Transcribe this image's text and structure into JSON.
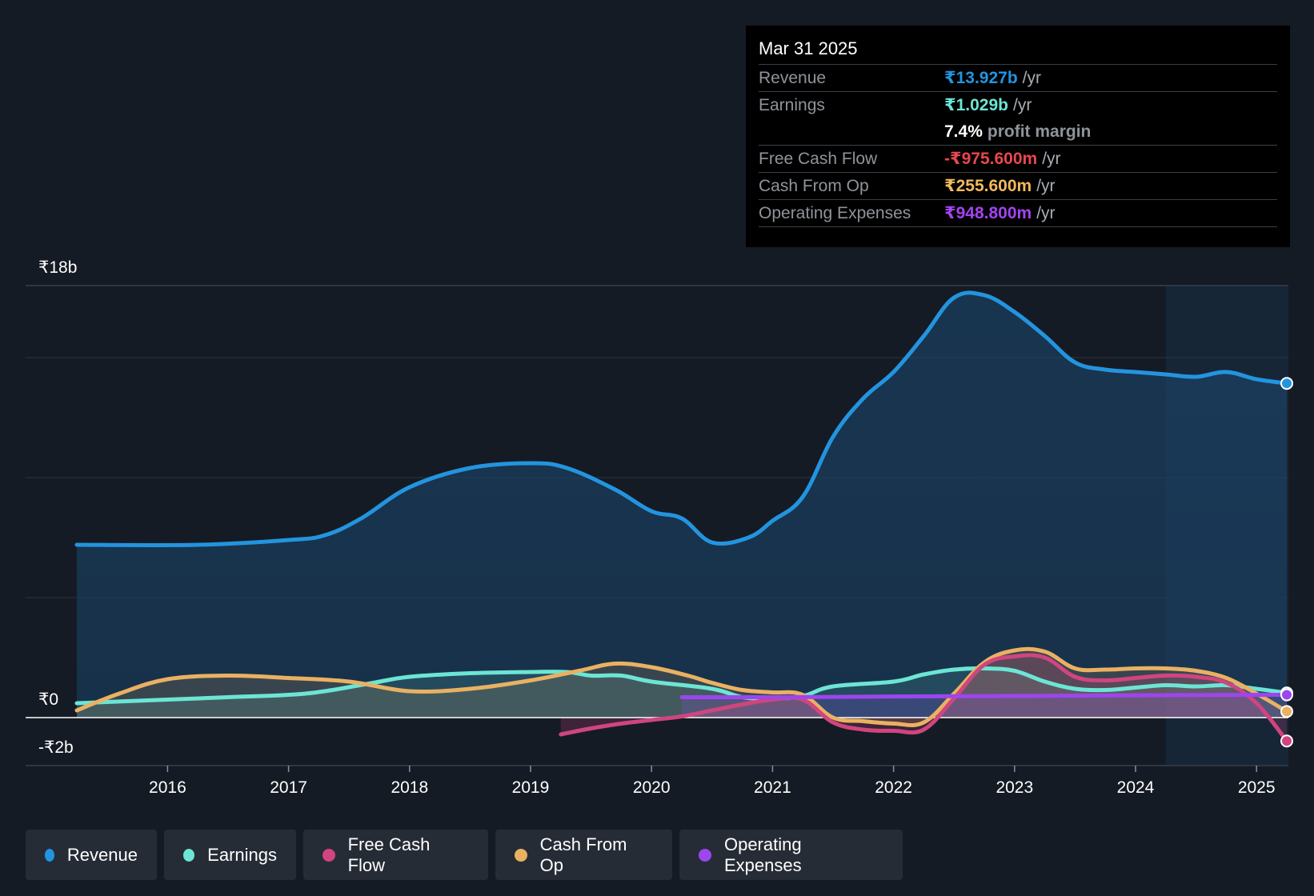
{
  "tooltip": {
    "date": "Mar 31 2025",
    "rows": [
      {
        "label": "Revenue",
        "value": "₹13.927b",
        "unit": "/yr",
        "color": "#2394df"
      },
      {
        "label": "Earnings",
        "value": "₹1.029b",
        "unit": "/yr",
        "color": "#6ce5d4"
      },
      {
        "label": "",
        "value": "7.4%",
        "unit": "profit margin",
        "color": "#ffffff"
      },
      {
        "label": "Free Cash Flow",
        "value": "-₹975.600m",
        "unit": "/yr",
        "color": "#e8474f"
      },
      {
        "label": "Cash From Op",
        "value": "₹255.600m",
        "unit": "/yr",
        "color": "#f2b95e"
      },
      {
        "label": "Operating Expenses",
        "value": "₹948.800m",
        "unit": "/yr",
        "color": "#a443f0"
      }
    ]
  },
  "legend": [
    {
      "label": "Revenue",
      "color": "#2394df"
    },
    {
      "label": "Earnings",
      "color": "#6ce5d4"
    },
    {
      "label": "Free Cash Flow",
      "color": "#d0457f"
    },
    {
      "label": "Cash From Op",
      "color": "#e9b162"
    },
    {
      "label": "Operating Expenses",
      "color": "#9c46ee"
    }
  ],
  "chart_data": {
    "type": "area",
    "title": "",
    "xlabel": "",
    "ylabel": "",
    "y_tick_labels": [
      "₹18b",
      "₹0",
      "-₹2b"
    ],
    "y_ticks": [
      18,
      0,
      -2
    ],
    "ylim": [
      -2,
      18
    ],
    "xlim": [
      2015.25,
      2025.25
    ],
    "x_ticks": [
      2016,
      2017,
      2018,
      2019,
      2020,
      2021,
      2022,
      2023,
      2024,
      2025
    ],
    "x_tick_labels": [
      "2016",
      "2017",
      "2018",
      "2019",
      "2020",
      "2021",
      "2022",
      "2023",
      "2024",
      "2025"
    ],
    "highlight_start": 2024.25,
    "series": [
      {
        "name": "Revenue",
        "color": "#2394df",
        "x": [
          2015.25,
          2016.25,
          2017.0,
          2017.3,
          2017.6,
          2018.0,
          2018.5,
          2019.0,
          2019.3,
          2019.7,
          2020.0,
          2020.25,
          2020.5,
          2020.8,
          2021.0,
          2021.25,
          2021.5,
          2021.75,
          2022.0,
          2022.25,
          2022.5,
          2022.75,
          2023.0,
          2023.25,
          2023.5,
          2023.75,
          2024.0,
          2024.25,
          2024.5,
          2024.75,
          2025.0,
          2025.25
        ],
        "values": [
          7.2,
          7.2,
          7.4,
          7.6,
          8.3,
          9.6,
          10.4,
          10.6,
          10.4,
          9.5,
          8.6,
          8.3,
          7.3,
          7.5,
          8.2,
          9.2,
          11.7,
          13.3,
          14.4,
          15.9,
          17.5,
          17.6,
          16.9,
          15.9,
          14.8,
          14.5,
          14.4,
          14.3,
          14.2,
          14.4,
          14.1,
          13.927
        ]
      },
      {
        "name": "Earnings",
        "color": "#6ce5d4",
        "x": [
          2015.25,
          2016.0,
          2016.5,
          2017.0,
          2017.3,
          2017.7,
          2018.0,
          2018.5,
          2019.0,
          2019.3,
          2019.5,
          2019.75,
          2020.0,
          2020.5,
          2020.75,
          2021.0,
          2021.25,
          2021.5,
          2022.0,
          2022.25,
          2022.5,
          2022.75,
          2023.0,
          2023.25,
          2023.5,
          2023.75,
          2024.0,
          2024.25,
          2024.5,
          2024.75,
          2025.0,
          2025.25
        ],
        "values": [
          0.6,
          0.75,
          0.85,
          0.95,
          1.1,
          1.45,
          1.7,
          1.85,
          1.9,
          1.9,
          1.75,
          1.75,
          1.5,
          1.2,
          0.85,
          0.8,
          0.9,
          1.3,
          1.5,
          1.8,
          2.0,
          2.05,
          1.95,
          1.5,
          1.2,
          1.15,
          1.25,
          1.35,
          1.3,
          1.35,
          1.2,
          1.029
        ]
      },
      {
        "name": "Free Cash Flow",
        "color": "#d0457f",
        "x": [
          2019.25,
          2019.5,
          2019.75,
          2020.0,
          2020.25,
          2020.5,
          2020.75,
          2021.0,
          2021.25,
          2021.5,
          2021.75,
          2022.0,
          2022.25,
          2022.5,
          2022.75,
          2023.0,
          2023.25,
          2023.5,
          2023.75,
          2024.0,
          2024.25,
          2024.5,
          2024.75,
          2025.0,
          2025.25
        ],
        "values": [
          -0.7,
          -0.45,
          -0.25,
          -0.1,
          0.05,
          0.3,
          0.55,
          0.75,
          0.75,
          -0.2,
          -0.5,
          -0.55,
          -0.5,
          0.8,
          2.2,
          2.55,
          2.5,
          1.7,
          1.55,
          1.65,
          1.75,
          1.7,
          1.45,
          0.6,
          -0.9756
        ]
      },
      {
        "name": "Cash From Op",
        "color": "#e9b162",
        "x": [
          2015.25,
          2015.6,
          2016.0,
          2016.5,
          2017.0,
          2017.5,
          2018.0,
          2018.5,
          2019.0,
          2019.4,
          2019.7,
          2020.0,
          2020.3,
          2020.5,
          2020.75,
          2021.0,
          2021.25,
          2021.5,
          2021.75,
          2022.0,
          2022.25,
          2022.5,
          2022.75,
          2023.0,
          2023.25,
          2023.5,
          2023.75,
          2024.0,
          2024.25,
          2024.5,
          2024.75,
          2025.0,
          2025.25
        ],
        "values": [
          0.3,
          1.0,
          1.6,
          1.75,
          1.65,
          1.5,
          1.1,
          1.2,
          1.55,
          1.95,
          2.25,
          2.1,
          1.75,
          1.45,
          1.15,
          1.05,
          0.95,
          0.0,
          -0.15,
          -0.25,
          -0.2,
          1.0,
          2.3,
          2.8,
          2.75,
          2.05,
          2.0,
          2.05,
          2.05,
          1.95,
          1.65,
          1.0,
          0.2556
        ]
      },
      {
        "name": "Operating Expenses",
        "color": "#9c46ee",
        "x": [
          2020.25,
          2021.0,
          2022.0,
          2023.0,
          2024.0,
          2025.25
        ],
        "values": [
          0.85,
          0.85,
          0.88,
          0.9,
          0.93,
          0.9488
        ]
      }
    ]
  }
}
